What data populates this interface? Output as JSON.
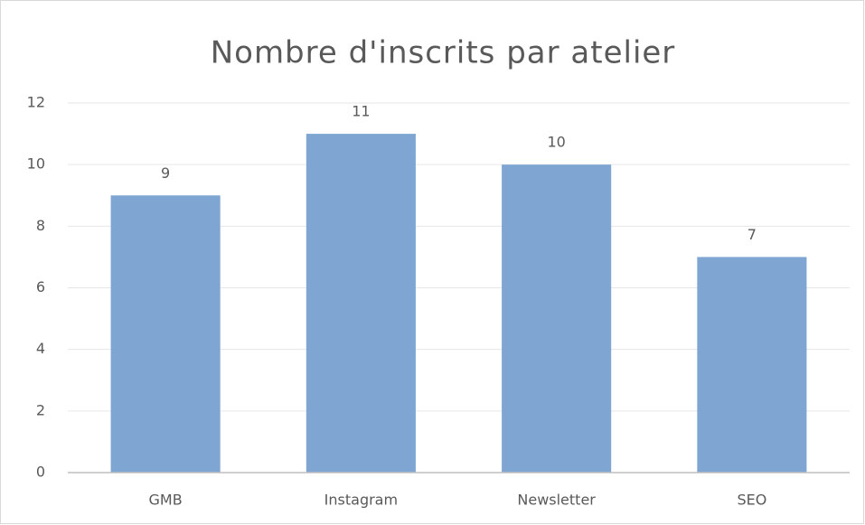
{
  "chart_data": {
    "type": "bar",
    "title": "Nombre d'inscrits par atelier",
    "categories": [
      "GMB",
      "Instagram",
      "Newsletter",
      "SEO"
    ],
    "values": [
      9,
      11,
      10,
      7
    ],
    "color": "#7fa6d2",
    "ylim": [
      0,
      12
    ],
    "yticks": [
      0,
      2,
      4,
      6,
      8,
      10,
      12
    ],
    "grid": true,
    "data_labels": true
  }
}
